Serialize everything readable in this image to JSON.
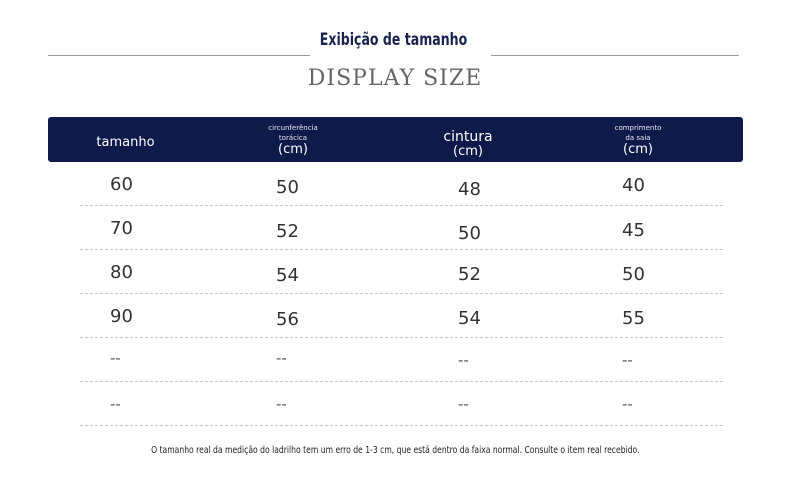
{
  "title": {
    "main": "Exibição de tamanho",
    "subtitle": "DISPLAY SIZE"
  },
  "table": {
    "headers": [
      {
        "small": "",
        "main": "tamanho",
        "unit": ""
      },
      {
        "small": "circunferência torácica",
        "main": "",
        "unit": "(cm)"
      },
      {
        "small": "",
        "main": "cintura",
        "unit": "(cm)"
      },
      {
        "small": "comprimento da saia",
        "main": "",
        "unit": "(cm)"
      }
    ],
    "rows": [
      [
        "60",
        "50",
        "48",
        "40"
      ],
      [
        "70",
        "52",
        "50",
        "45"
      ],
      [
        "80",
        "54",
        "52",
        "50"
      ],
      [
        "90",
        "56",
        "54",
        "55"
      ],
      [
        "--",
        "--",
        "--",
        "--"
      ],
      [
        "--",
        "--",
        "--",
        "--"
      ]
    ]
  },
  "footnote": "O tamanho real da medição do ladrilho tem um erro de 1-3 cm, que está dentro da faixa normal. Consulte o item real recebido."
}
